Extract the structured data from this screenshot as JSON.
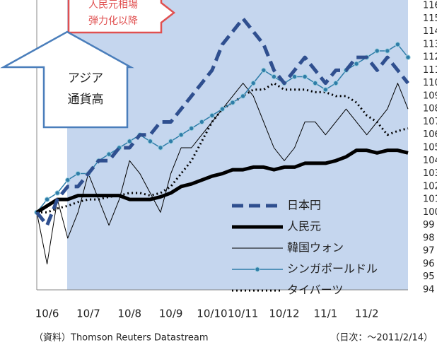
{
  "chart_data": {
    "type": "line",
    "annotations": [
      "人民元相場",
      "弾力化以降",
      "アジア",
      "通貨高"
    ],
    "source": "（資料）Thomson Reuters Datastream",
    "note": "（日次：～2011/2/14）",
    "categories": [
      null,
      "10/6",
      null,
      null,
      null,
      "10/7",
      null,
      null,
      null,
      "10/8",
      null,
      null,
      null,
      "10/9",
      null,
      null,
      null,
      "10/10",
      null,
      null,
      "10/11",
      null,
      null,
      null,
      "10/12",
      null,
      null,
      null,
      "11/1",
      null,
      null,
      null,
      "11/2",
      null,
      null,
      null,
      null
    ],
    "ylim": [
      94,
      116
    ],
    "yticks": [
      94,
      95,
      96,
      97,
      98,
      99,
      100,
      101,
      102,
      103,
      104,
      105,
      106,
      107,
      108,
      109,
      110,
      111,
      112,
      113,
      114,
      115,
      116
    ],
    "legend": "lower right",
    "series": [
      {
        "name": "日本円",
        "color": "#2f4f8f",
        "linestyle": "dashed",
        "linewidth": 5,
        "values": [
          100,
          99,
          101,
          102,
          102,
          103,
          104,
          104,
          105,
          105,
          106,
          106,
          107,
          107,
          108,
          109,
          110,
          111,
          113,
          114,
          115,
          114,
          113,
          111,
          110,
          111,
          112,
          111,
          110,
          111,
          111,
          112,
          112,
          111,
          112,
          111,
          110
        ]
      },
      {
        "name": "人民元",
        "color": "#000000",
        "linestyle": "solid",
        "linewidth": 5,
        "values": [
          100,
          100.5,
          101,
          101,
          101.3,
          101.3,
          101.3,
          101.3,
          101.3,
          101,
          101,
          101,
          101.2,
          101.5,
          102,
          102.2,
          102.5,
          102.8,
          103,
          103.3,
          103.3,
          103.5,
          103.5,
          103.3,
          103.5,
          103.5,
          103.8,
          103.8,
          103.8,
          104,
          104.3,
          104.8,
          104.8,
          104.6,
          104.8,
          104.8,
          104.6
        ]
      },
      {
        "name": "韓国ウォン",
        "color": "#000000",
        "linestyle": "solid",
        "linewidth": 1,
        "values": [
          100,
          96,
          101,
          98,
          100,
          103,
          101,
          99,
          101,
          104,
          103,
          101.5,
          100,
          103,
          105,
          105,
          106,
          107,
          108,
          109,
          110,
          109,
          107,
          105,
          104,
          105,
          107,
          107,
          106,
          107,
          108,
          107,
          106,
          107,
          108,
          110,
          108
        ]
      },
      {
        "name": "シンガポールドル",
        "color": "#2e7da8",
        "linestyle": "solid",
        "linewidth": 1.5,
        "marker": "circle",
        "values": [
          100,
          101,
          101.5,
          102.5,
          103,
          103,
          104,
          104.5,
          105,
          105.5,
          106,
          105.5,
          105,
          105.5,
          106,
          106.5,
          107,
          107.5,
          108,
          108.5,
          109,
          110,
          111,
          110.5,
          110,
          110.5,
          110.5,
          110,
          109.5,
          110,
          111,
          111.5,
          112,
          112.5,
          112.5,
          113,
          112
        ]
      },
      {
        "name": "タイバーツ",
        "color": "#000000",
        "linestyle": "dotted",
        "linewidth": 3,
        "values": [
          100,
          100,
          100.3,
          100.5,
          100.8,
          101,
          101,
          101.2,
          101.3,
          101.5,
          101.5,
          101.3,
          101.5,
          102,
          103,
          104,
          105.5,
          107,
          108,
          108.5,
          109,
          109.5,
          109.5,
          110,
          109.5,
          109.5,
          109.5,
          109.3,
          109.3,
          109,
          109,
          108.5,
          107.5,
          107,
          106,
          106.3,
          106.5
        ]
      }
    ]
  }
}
